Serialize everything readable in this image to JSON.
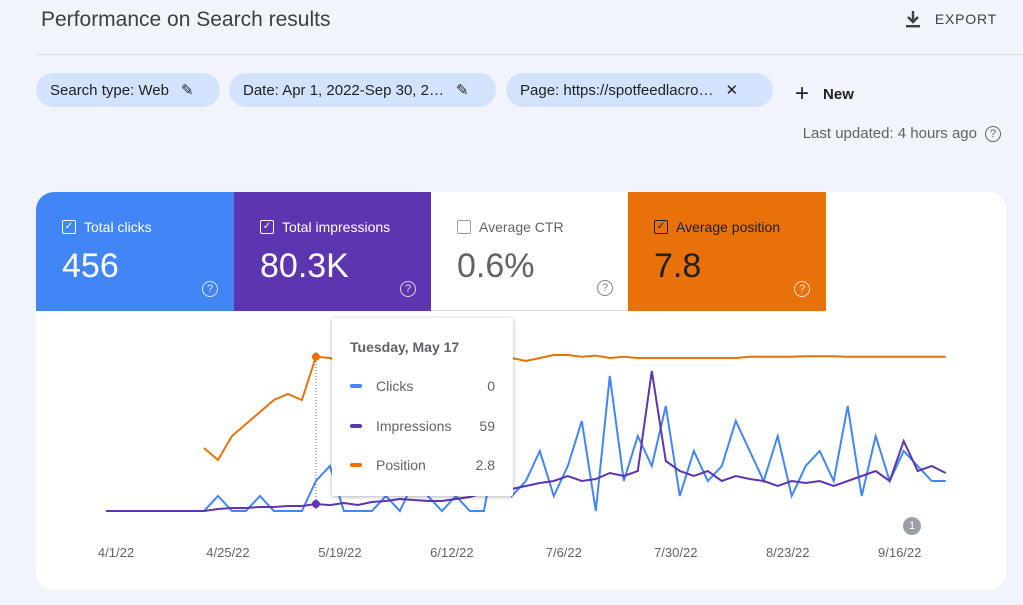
{
  "header": {
    "title": "Performance on Search results",
    "export_label": "EXPORT"
  },
  "filters": [
    {
      "label": "Search type: Web"
    },
    {
      "label": "Date: Apr 1, 2022-Sep 30, 2…"
    },
    {
      "label": "Page: https://spotfeedlacro…"
    }
  ],
  "new_label": "New",
  "last_updated": "Last updated: 4 hours ago",
  "metrics": [
    {
      "label": "Total clicks",
      "value": "456",
      "checked": true,
      "color": "#4285f4"
    },
    {
      "label": "Total impressions",
      "value": "80.3K",
      "checked": true,
      "color": "#5e35b1"
    },
    {
      "label": "Average CTR",
      "value": "0.6%",
      "checked": false,
      "color": "#ffffff"
    },
    {
      "label": "Average position",
      "value": "7.8",
      "checked": true,
      "color": "#e8710a"
    }
  ],
  "tooltip": {
    "date": "Tuesday, May 17",
    "rows": [
      {
        "name": "Clicks",
        "value": "0",
        "color": "#4285f4"
      },
      {
        "name": "Impressions",
        "value": "59",
        "color": "#5e35b1"
      },
      {
        "name": "Position",
        "value": "2.8",
        "color": "#e8710a"
      }
    ]
  },
  "annotation": "1",
  "chart_data": {
    "type": "line",
    "x_start": "2022-04-01",
    "step_days": 3,
    "x_labels": [
      "4/1/22",
      "4/25/22",
      "5/19/22",
      "6/12/22",
      "7/6/22",
      "7/30/22",
      "8/23/22",
      "9/16/22"
    ],
    "series": [
      {
        "name": "Clicks",
        "color": "#4285f4",
        "values": [
          0,
          0,
          0,
          0,
          0,
          0,
          0,
          0,
          1,
          0,
          0,
          1,
          0,
          0,
          0,
          2,
          3,
          0,
          0,
          0,
          1,
          0,
          2,
          1,
          0,
          1,
          0,
          0,
          5,
          1,
          2,
          4,
          1,
          3,
          6,
          0,
          9,
          2,
          5,
          3,
          7,
          1,
          4,
          2,
          3,
          6,
          4,
          2,
          5,
          1,
          3,
          4,
          2,
          7,
          1,
          5,
          2,
          4,
          3,
          2,
          2
        ]
      },
      {
        "name": "Impressions",
        "color": "#5e35b1",
        "values": [
          0,
          0,
          0,
          0,
          0,
          0,
          0,
          0,
          20,
          30,
          30,
          40,
          40,
          50,
          50,
          70,
          59,
          80,
          60,
          90,
          100,
          120,
          110,
          100,
          100,
          120,
          140,
          180,
          200,
          220,
          250,
          280,
          300,
          350,
          300,
          320,
          380,
          350,
          400,
          1400,
          500,
          400,
          350,
          400,
          300,
          350,
          320,
          300,
          250,
          300,
          280,
          300,
          250,
          300,
          350,
          400,
          300,
          700,
          400,
          450,
          380
        ]
      },
      {
        "name": "Position",
        "color": "#e8710a",
        "inverted": true,
        "values": [
          null,
          null,
          null,
          null,
          null,
          null,
          null,
          18,
          20,
          16,
          14,
          12,
          10,
          9,
          10,
          2.8,
          3,
          4,
          2.5,
          3,
          3,
          4,
          4,
          5,
          6,
          8,
          7,
          4,
          4,
          3,
          3.5,
          3,
          2.5,
          2.5,
          2.8,
          2.6,
          3,
          2.8,
          3,
          3,
          3,
          3,
          3,
          3,
          3,
          3,
          2.8,
          2.8,
          2.8,
          2.8,
          2.7,
          2.7,
          2.7,
          2.8,
          2.8,
          2.8,
          2.8,
          2.8,
          2.8,
          2.8,
          2.8
        ]
      }
    ]
  }
}
